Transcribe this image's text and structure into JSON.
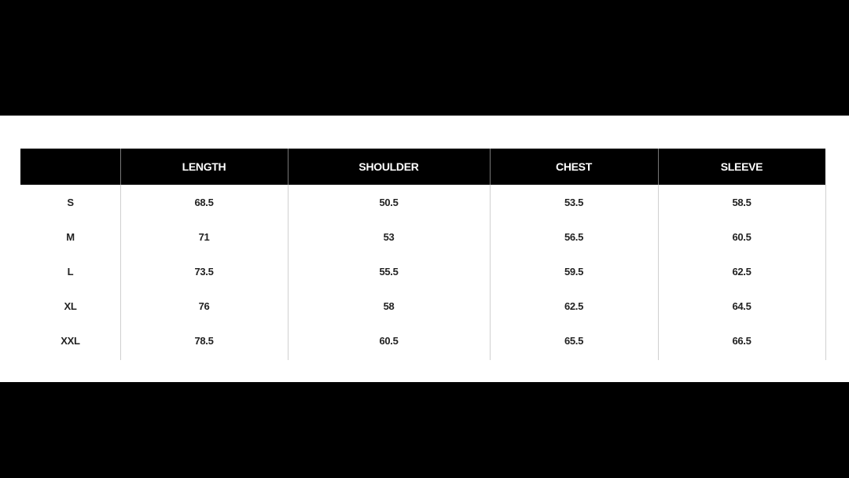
{
  "table": {
    "header": [
      "LENGTH",
      "SHOULDER",
      "CHEST",
      "SLEEVE"
    ],
    "rows": [
      [
        "S",
        68.5,
        50.5,
        53.5,
        58.5
      ],
      [
        "M",
        71,
        53,
        56.5,
        60.5
      ],
      [
        "L",
        73.5,
        55.5,
        59.5,
        62.5
      ],
      [
        "XL",
        76,
        58,
        62.5,
        64.5
      ],
      [
        "XXL",
        78.5,
        60.5,
        65.5,
        66.5
      ]
    ]
  }
}
